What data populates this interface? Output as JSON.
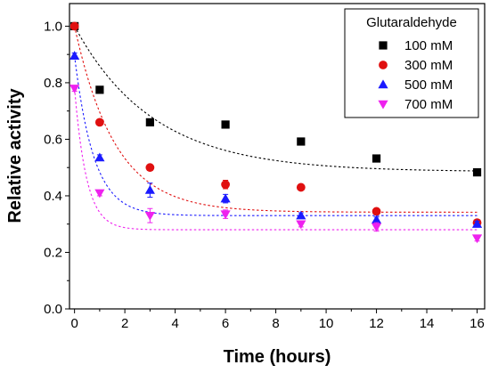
{
  "chart_data": {
    "type": "scatter",
    "xlabel": "Time (hours)",
    "ylabel": "Relative activity",
    "xlim": [
      -0.2,
      16.3
    ],
    "ylim": [
      0.0,
      1.08
    ],
    "xticks": [
      0,
      2,
      4,
      6,
      8,
      10,
      12,
      14,
      16
    ],
    "yticks": [
      0.0,
      0.2,
      0.4,
      0.6,
      0.8,
      1.0
    ],
    "xtick_labels": [
      "0",
      "2",
      "4",
      "6",
      "8",
      "10",
      "12",
      "14",
      "16"
    ],
    "ytick_labels": [
      "0.0",
      "0.2",
      "0.4",
      "0.6",
      "0.8",
      "1.0"
    ],
    "grid": false,
    "legend": {
      "title": "Glutaraldehyde",
      "position": "top-right"
    },
    "series": [
      {
        "name": "100 mM",
        "color": "#000000",
        "marker": "square",
        "x": [
          0,
          1,
          3,
          6,
          9,
          12,
          16
        ],
        "y": [
          1.0,
          0.775,
          0.66,
          0.652,
          0.592,
          0.532,
          0.483
        ],
        "err": [
          0.01,
          0.01,
          0.01,
          0.01,
          0.01,
          0.01,
          0.01
        ],
        "fit": {
          "plateau": 0.485,
          "k": 0.32
        }
      },
      {
        "name": "300 mM",
        "color": "#e01010",
        "marker": "circle",
        "x": [
          0,
          1,
          3,
          6,
          9,
          12,
          16
        ],
        "y": [
          1.0,
          0.66,
          0.5,
          0.44,
          0.43,
          0.345,
          0.305
        ],
        "err": [
          0.01,
          0.01,
          0.01,
          0.015,
          0.01,
          0.01,
          0.01
        ],
        "fit": {
          "plateau": 0.342,
          "k": 0.62
        }
      },
      {
        "name": "500 mM",
        "color": "#1a1aff",
        "marker": "triangle-up",
        "x": [
          0,
          1,
          3,
          6,
          9,
          12,
          16
        ],
        "y": [
          0.895,
          0.535,
          0.42,
          0.39,
          0.33,
          0.315,
          0.3
        ],
        "err": [
          0.01,
          0.01,
          0.025,
          0.015,
          0.01,
          0.01,
          0.01
        ],
        "fit": {
          "plateau": 0.33,
          "k": 1.3
        }
      },
      {
        "name": "700 mM",
        "color": "#ee22ee",
        "marker": "triangle-down",
        "x": [
          0,
          1,
          3,
          6,
          9,
          12,
          16
        ],
        "y": [
          0.78,
          0.41,
          0.33,
          0.335,
          0.3,
          0.29,
          0.25
        ],
        "err": [
          0.01,
          0.01,
          0.025,
          0.015,
          0.01,
          0.015,
          0.01
        ],
        "fit": {
          "plateau": 0.28,
          "k": 2.1
        }
      }
    ]
  }
}
